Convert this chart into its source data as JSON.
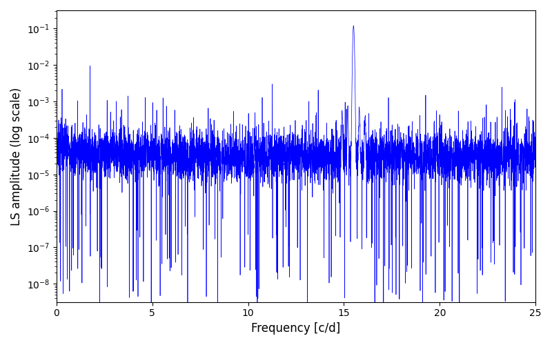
{
  "title": "",
  "xlabel": "Frequency [c/d]",
  "ylabel": "LS amplitude (log scale)",
  "xlim": [
    0,
    25
  ],
  "ylim_log": [
    -8.5,
    -0.5
  ],
  "line_color": "#0000FF",
  "line_width": 0.5,
  "figsize": [
    8.0,
    5.0
  ],
  "dpi": 100,
  "peak_freq": 15.5,
  "peak_amp": 0.12,
  "noise_floor_log": -4.5,
  "noise_std_log": 0.35,
  "n_points": 5000,
  "freq_min": 0.0,
  "freq_max": 25.0,
  "seed": 7
}
